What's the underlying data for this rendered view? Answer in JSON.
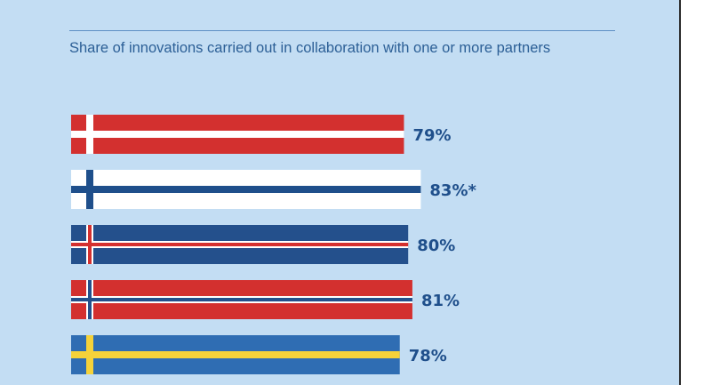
{
  "chart_data": {
    "type": "bar",
    "orientation": "horizontal",
    "title": "Share of innovations carried out in collaboration with one or more partners",
    "bars": [
      {
        "flag": "denmark",
        "value": 79,
        "label": "79%",
        "base": "#d3302f",
        "cross": "#ffffff",
        "inner": null
      },
      {
        "flag": "finland",
        "value": 83,
        "label": "83%*",
        "base": "#ffffff",
        "cross": "#1f4f8b",
        "inner": null
      },
      {
        "flag": "iceland",
        "value": 80,
        "label": "80%",
        "base": "#24508c",
        "cross": "#ffffff",
        "inner": "#d3302f"
      },
      {
        "flag": "norway",
        "value": 81,
        "label": "81%",
        "base": "#d3302f",
        "cross": "#ffffff",
        "inner": "#24508c"
      },
      {
        "flag": "sweden",
        "value": 78,
        "label": "78%",
        "base": "#2f6db3",
        "cross": "#f5d23a",
        "inner": null
      }
    ],
    "xlim": [
      0,
      100
    ],
    "grid": false,
    "legend": "none"
  },
  "colors": {
    "background": "#c3ddf3",
    "label": "#1f4f8b",
    "subtitle": "#2c5f96"
  }
}
